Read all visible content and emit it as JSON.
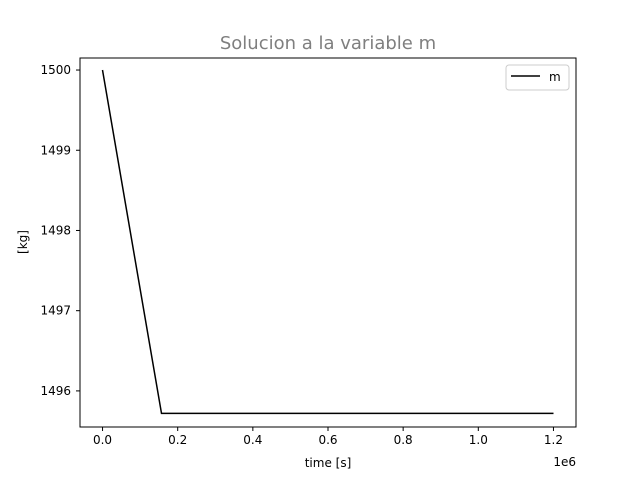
{
  "chart_data": {
    "type": "line",
    "title": "Solucion a la variable m",
    "xlabel": "time [s]",
    "ylabel": "[kg]",
    "x_offset_label": "1e6",
    "xlim": [
      -60000,
      1260000
    ],
    "ylim": [
      1495.55,
      1500.15
    ],
    "x_ticks": [
      0,
      200000,
      400000,
      600000,
      800000,
      1000000,
      1200000
    ],
    "x_tick_labels": [
      "0.0",
      "0.2",
      "0.4",
      "0.6",
      "0.8",
      "1.0",
      "1.2"
    ],
    "y_ticks": [
      1496,
      1497,
      1498,
      1499,
      1500
    ],
    "y_tick_labels": [
      "1496",
      "1497",
      "1498",
      "1499",
      "1500"
    ],
    "grid": false,
    "legend_position": "upper right",
    "series": [
      {
        "name": "m",
        "color": "#000000",
        "x": [
          0,
          157000,
          1200000
        ],
        "y": [
          1500.0,
          1495.72,
          1495.72
        ]
      }
    ]
  }
}
